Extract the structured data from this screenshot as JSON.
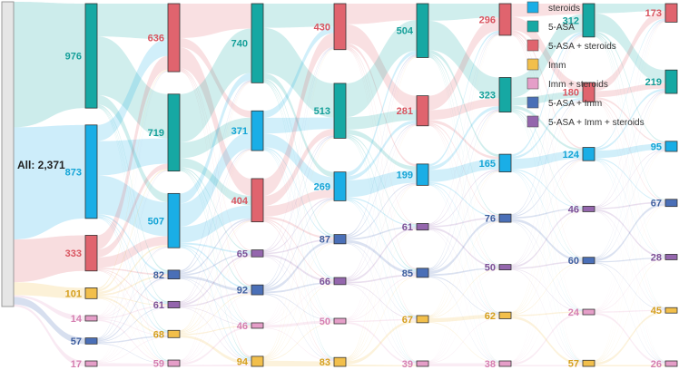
{
  "chart_data": {
    "type": "sankey",
    "total_label": "All: 2,371",
    "categories": [
      "steroids",
      "5-ASA",
      "5-ASA + steroids",
      "Imm",
      "Imm + steroids",
      "5-ASA + Imm",
      "5-ASA + Imm + steroids"
    ],
    "colors": {
      "steroids": "#1aaee6",
      "5-ASA": "#16a8a3",
      "5-ASA + steroids": "#e0646e",
      "Imm": "#f2bf4b",
      "Imm + steroids": "#e59ec8",
      "5-ASA + Imm": "#4a6fb7",
      "5-ASA + Imm + steroids": "#9466ad"
    },
    "label_colors": {
      "steroids": "#13a4d6",
      "5-ASA": "#159f99",
      "5-ASA + steroids": "#d9545f",
      "Imm": "#d59f1e",
      "Imm + steroids": "#d57fb1",
      "5-ASA + Imm": "#40609f",
      "5-ASA + Imm + steroids": "#7d5297"
    },
    "stages": [
      [
        {
          "cat": "5-ASA",
          "value": 976
        },
        {
          "cat": "steroids",
          "value": 873
        },
        {
          "cat": "5-ASA + steroids",
          "value": 333
        },
        {
          "cat": "Imm",
          "value": 101
        },
        {
          "cat": "Imm + steroids",
          "value": 14
        },
        {
          "cat": "5-ASA + Imm",
          "value": 57
        },
        {
          "cat": "Imm + steroids",
          "value": 17
        }
      ],
      [
        {
          "cat": "5-ASA + steroids",
          "value": 636
        },
        {
          "cat": "5-ASA",
          "value": 719
        },
        {
          "cat": "steroids",
          "value": 507
        },
        {
          "cat": "5-ASA + Imm",
          "value": 82
        },
        {
          "cat": "5-ASA + Imm + steroids",
          "value": 61
        },
        {
          "cat": "Imm",
          "value": 68
        },
        {
          "cat": "Imm + steroids",
          "value": 59
        }
      ],
      [
        {
          "cat": "5-ASA",
          "value": 740
        },
        {
          "cat": "steroids",
          "value": 371
        },
        {
          "cat": "5-ASA + steroids",
          "value": 404
        },
        {
          "cat": "5-ASA + Imm + steroids",
          "value": 65
        },
        {
          "cat": "5-ASA + Imm",
          "value": 92
        },
        {
          "cat": "Imm + steroids",
          "value": 46
        },
        {
          "cat": "Imm",
          "value": 94
        }
      ],
      [
        {
          "cat": "5-ASA + steroids",
          "value": 430
        },
        {
          "cat": "5-ASA",
          "value": 513
        },
        {
          "cat": "steroids",
          "value": 269
        },
        {
          "cat": "5-ASA + Imm",
          "value": 87
        },
        {
          "cat": "5-ASA + Imm + steroids",
          "value": 66
        },
        {
          "cat": "Imm + steroids",
          "value": 50
        },
        {
          "cat": "Imm",
          "value": 83
        }
      ],
      [
        {
          "cat": "5-ASA",
          "value": 504
        },
        {
          "cat": "5-ASA + steroids",
          "value": 281
        },
        {
          "cat": "steroids",
          "value": 199
        },
        {
          "cat": "5-ASA + Imm + steroids",
          "value": 61
        },
        {
          "cat": "5-ASA + Imm",
          "value": 85
        },
        {
          "cat": "Imm",
          "value": 67
        },
        {
          "cat": "Imm + steroids",
          "value": 39
        }
      ],
      [
        {
          "cat": "5-ASA + steroids",
          "value": 296
        },
        {
          "cat": "5-ASA",
          "value": 323
        },
        {
          "cat": "steroids",
          "value": 165
        },
        {
          "cat": "5-ASA + Imm",
          "value": 76
        },
        {
          "cat": "5-ASA + Imm + steroids",
          "value": 50
        },
        {
          "cat": "Imm",
          "value": 62
        },
        {
          "cat": "Imm + steroids",
          "value": 38
        }
      ],
      [
        {
          "cat": "5-ASA",
          "value": 312
        },
        {
          "cat": "5-ASA + steroids",
          "value": 180
        },
        {
          "cat": "steroids",
          "value": 124
        },
        {
          "cat": "5-ASA + Imm + steroids",
          "value": 46
        },
        {
          "cat": "5-ASA + Imm",
          "value": 60
        },
        {
          "cat": "Imm + steroids",
          "value": 24
        },
        {
          "cat": "Imm",
          "value": 57
        }
      ],
      [
        {
          "cat": "5-ASA + steroids",
          "value": 173
        },
        {
          "cat": "5-ASA",
          "value": 219
        },
        {
          "cat": "steroids",
          "value": 95
        },
        {
          "cat": "5-ASA + Imm",
          "value": 67
        },
        {
          "cat": "5-ASA + Imm + steroids",
          "value": 28
        },
        {
          "cat": "Imm",
          "value": 45
        },
        {
          "cat": "Imm + steroids",
          "value": 26
        }
      ]
    ],
    "legend_position": "top-right"
  }
}
